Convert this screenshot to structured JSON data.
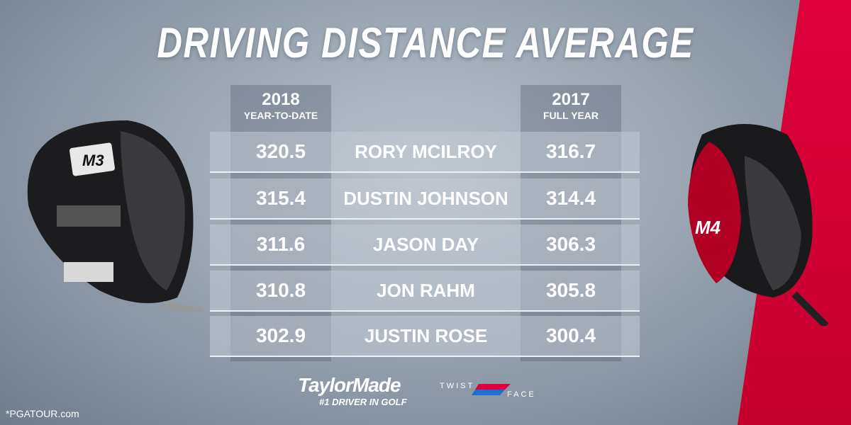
{
  "title": "DRIVING DISTANCE AVERAGE",
  "columns": {
    "left": {
      "year": "2018",
      "sub": "YEAR-TO-DATE"
    },
    "right": {
      "year": "2017",
      "sub": "FULL YEAR"
    }
  },
  "rows": [
    {
      "v2018": "320.5",
      "name": "RORY MCILROY",
      "v2017": "316.7"
    },
    {
      "v2018": "315.4",
      "name": "DUSTIN JOHNSON",
      "v2017": "314.4"
    },
    {
      "v2018": "311.6",
      "name": "JASON DAY",
      "v2017": "306.3"
    },
    {
      "v2018": "310.8",
      "name": "JON RAHM",
      "v2017": "305.8"
    },
    {
      "v2018": "302.9",
      "name": "JUSTIN ROSE",
      "v2017": "300.4"
    }
  ],
  "brand": {
    "name": "TaylorMade",
    "tagline": "#1 DRIVER IN GOLF"
  },
  "twistface": {
    "top": "TWIST",
    "bottom": "FACE"
  },
  "drivers": {
    "left": "M3",
    "right": "M4"
  },
  "source": "*PGATOUR.com",
  "colors": {
    "accent_red": "#e0003c",
    "accent_blue": "#1f4f9a"
  }
}
